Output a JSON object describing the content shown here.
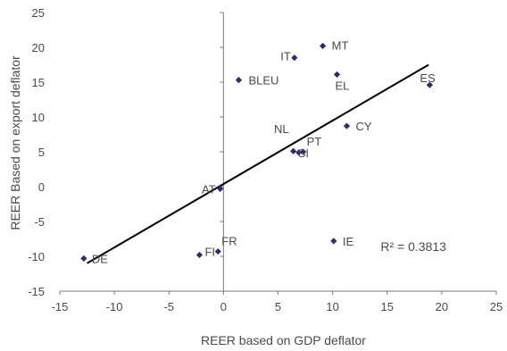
{
  "chart_data": {
    "type": "scatter",
    "xlabel": "REER based on GDP deflator",
    "ylabel": "REER Based on export deflator",
    "xlim": [
      -15,
      25
    ],
    "ylim": [
      -15,
      25
    ],
    "xticks": [
      -15,
      -10,
      -5,
      0,
      5,
      10,
      15,
      20,
      25
    ],
    "yticks": [
      -15,
      -10,
      -5,
      0,
      5,
      10,
      15,
      20,
      25
    ],
    "grid": false,
    "marker_color": "#2e2a6e",
    "trendline": {
      "label": "R² = 0.3813",
      "from": [
        -12.5,
        -11.0
      ],
      "to": [
        18.8,
        17.5
      ],
      "color": "#000000"
    },
    "points": [
      {
        "label": "MT",
        "x": 9.1,
        "y": 20.2
      },
      {
        "label": "IT",
        "x": 6.5,
        "y": 18.5
      },
      {
        "label": "EL",
        "x": 10.4,
        "y": 16.1
      },
      {
        "label": "BLEU",
        "x": 1.4,
        "y": 15.3
      },
      {
        "label": "ES",
        "x": 18.9,
        "y": 14.6
      },
      {
        "label": "CY",
        "x": 11.3,
        "y": 8.7
      },
      {
        "label": "NL",
        "x": 6.4,
        "y": 5.1
      },
      {
        "label": "SI",
        "x": 6.9,
        "y": 4.9
      },
      {
        "label": "PT",
        "x": 7.3,
        "y": 5.0
      },
      {
        "label": "AT",
        "x": -0.3,
        "y": -0.3
      },
      {
        "label": "IE",
        "x": 10.1,
        "y": -7.8
      },
      {
        "label": "FR",
        "x": -0.5,
        "y": -9.3
      },
      {
        "label": "FI",
        "x": -2.2,
        "y": -9.8
      },
      {
        "label": "DE",
        "x": -12.8,
        "y": -10.3
      }
    ]
  }
}
